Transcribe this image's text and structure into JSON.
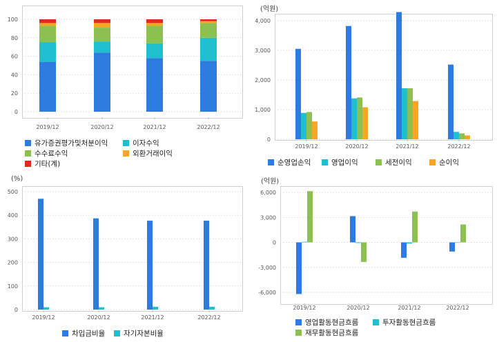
{
  "chart_data": [
    {
      "type": "bar",
      "stacked": true,
      "categories": [
        "2019/12",
        "2020/12",
        "2021/12",
        "2022/12"
      ],
      "ylim": [
        0,
        100
      ],
      "yticks": [
        0,
        20,
        40,
        60,
        80,
        100
      ],
      "yticklabels": [
        "0",
        "20",
        "40",
        "60",
        "80",
        "100"
      ],
      "unit": "",
      "series": [
        {
          "name": "유가증권평가및처분이익",
          "color": "#2e7be0",
          "values": [
            54,
            64,
            58,
            55
          ]
        },
        {
          "name": "이자수익",
          "color": "#1fbfcf",
          "values": [
            21,
            12,
            16,
            25
          ]
        },
        {
          "name": "수수료수익",
          "color": "#8cc152",
          "values": [
            18,
            15,
            19,
            16
          ]
        },
        {
          "name": "외환거래이익",
          "color": "#f6a623",
          "values": [
            3,
            5,
            3,
            2
          ]
        },
        {
          "name": "기타(계)",
          "color": "#e02a1e",
          "values": [
            4,
            4,
            4,
            2
          ]
        }
      ],
      "legend_position": "bottom",
      "grid": true
    },
    {
      "type": "bar",
      "categories": [
        "2019/12",
        "2020/12",
        "2021/12",
        "2022/12"
      ],
      "ylim": [
        0,
        4500
      ],
      "yticks": [
        0,
        1000,
        2000,
        3000,
        4000
      ],
      "yticklabels": [
        "0",
        "1,000",
        "2,000",
        "3,000",
        "4,000"
      ],
      "unit": "(억원)",
      "series": [
        {
          "name": "순영업손익",
          "color": "#2e7be0",
          "values": [
            3050,
            3820,
            4290,
            2520
          ]
        },
        {
          "name": "영업이익",
          "color": "#1fbfcf",
          "values": [
            890,
            1380,
            1720,
            250
          ]
        },
        {
          "name": "세전이익",
          "color": "#8cc152",
          "values": [
            920,
            1410,
            1720,
            200
          ]
        },
        {
          "name": "순이익",
          "color": "#f6a623",
          "values": [
            600,
            1080,
            1290,
            130
          ]
        }
      ],
      "legend_position": "bottom",
      "grid": true
    },
    {
      "type": "bar",
      "categories": [
        "2019/12",
        "2020/12",
        "2021/12",
        "2022/12"
      ],
      "ylim": [
        0,
        530
      ],
      "yticks": [
        0,
        100,
        200,
        300,
        400,
        500
      ],
      "yticklabels": [
        "0",
        "100",
        "200",
        "300",
        "400",
        "500"
      ],
      "unit": "(%)",
      "series": [
        {
          "name": "차입금비율",
          "color": "#2e7be0",
          "values": [
            470,
            387,
            377,
            377
          ]
        },
        {
          "name": "자기자본비율",
          "color": "#1fbfcf",
          "values": [
            10,
            10,
            12,
            12
          ]
        }
      ],
      "legend_position": "bottom",
      "grid": true
    },
    {
      "type": "bar",
      "categories": [
        "2019/12",
        "2020/12",
        "2021/12",
        "2022/12"
      ],
      "ylim": [
        -6600,
        6600
      ],
      "yticks": [
        -6000,
        -3000,
        0,
        3000,
        6000
      ],
      "yticklabels": [
        "-6,000",
        "-3,000",
        "0",
        "3,000",
        "6,000"
      ],
      "unit": "(억원)",
      "series": [
        {
          "name": "영업활동현금흐름",
          "color": "#2e7be0",
          "values": [
            -6200,
            3150,
            -1850,
            -1100
          ]
        },
        {
          "name": "투자활동현금흐름",
          "color": "#1fbfcf",
          "values": [
            70,
            -80,
            -150,
            -50
          ]
        },
        {
          "name": "재무활동현금흐름",
          "color": "#8cc152",
          "values": [
            6150,
            -2350,
            3700,
            2150
          ]
        }
      ],
      "legend_position": "bottom",
      "grid": true
    }
  ]
}
